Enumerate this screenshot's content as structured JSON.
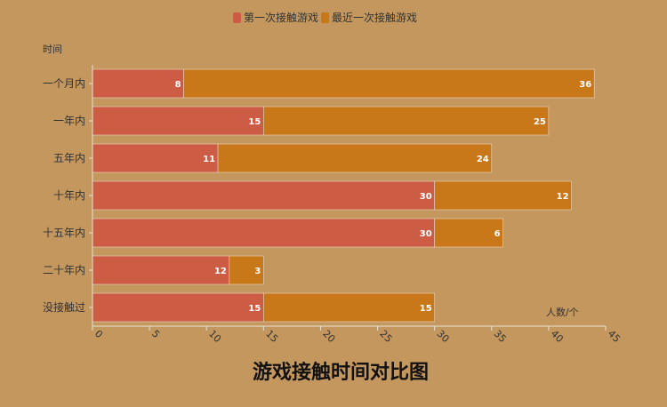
{
  "chart_data": {
    "type": "bar",
    "orientation": "horizontal",
    "stacked": true,
    "title": "游戏接触时间对比图",
    "ylabel": "时间",
    "xlabel": "人数/个",
    "categories": [
      "一个月内",
      "一年内",
      "五年内",
      "十年内",
      "十五年内",
      "二十年内",
      "没接触过"
    ],
    "series": [
      {
        "name": "第一次接触游戏",
        "color": "#cd5c45",
        "values": [
          8,
          15,
          11,
          30,
          30,
          12,
          15
        ]
      },
      {
        "name": "最近一次接触游戏",
        "color": "#c87719",
        "values": [
          36,
          25,
          24,
          12,
          6,
          3,
          15
        ]
      }
    ],
    "xlim": [
      0,
      45
    ],
    "xticks": [
      0,
      5,
      10,
      15,
      20,
      25,
      30,
      35,
      40,
      45
    ],
    "legend_position": "top-center",
    "grid": false,
    "data_labels": true,
    "background": "#c4975e"
  }
}
